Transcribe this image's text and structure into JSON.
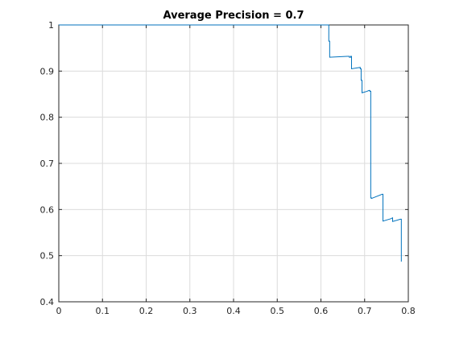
{
  "chart_data": {
    "type": "line",
    "title": "Average Precision = 0.7",
    "xlabel": "",
    "ylabel": "",
    "xlim": [
      0,
      0.8
    ],
    "ylim": [
      0.4,
      1
    ],
    "grid": true,
    "xticks": [
      0,
      0.1,
      0.2,
      0.3,
      0.4,
      0.5,
      0.6,
      0.7,
      0.8
    ],
    "xtick_labels": [
      "0",
      "0.1",
      "0.2",
      "0.3",
      "0.4",
      "0.5",
      "0.6",
      "0.7",
      "0.8"
    ],
    "yticks": [
      0.4,
      0.5,
      0.6,
      0.7,
      0.8,
      0.9,
      1
    ],
    "ytick_labels": [
      "0.4",
      "0.5",
      "0.6",
      "0.7",
      "0.8",
      "0.9",
      "1"
    ],
    "line_color": "#0072BD",
    "series": [
      {
        "x": [
          0,
          0.618,
          0.618,
          0.62,
          0.62,
          0.66,
          0.66,
          0.665,
          0.665,
          0.668,
          0.668,
          0.67,
          0.67,
          0.69,
          0.69,
          0.692,
          0.692,
          0.694,
          0.694,
          0.705,
          0.705,
          0.71,
          0.71,
          0.712,
          0.712,
          0.714,
          0.714,
          0.716,
          0.716,
          0.74,
          0.74,
          0.742,
          0.742,
          0.76,
          0.76,
          0.764,
          0.764,
          0.782,
          0.782,
          0.784,
          0.784
        ],
        "y": [
          1,
          1,
          0.965,
          0.965,
          0.93,
          0.932,
          0.932,
          0.932,
          0.93,
          0.93,
          0.932,
          0.932,
          0.905,
          0.908,
          0.905,
          0.905,
          0.88,
          0.88,
          0.853,
          0.856,
          0.856,
          0.858,
          0.858,
          0.858,
          0.856,
          0.856,
          0.625,
          0.625,
          0.624,
          0.633,
          0.633,
          0.633,
          0.575,
          0.58,
          0.58,
          0.582,
          0.574,
          0.579,
          0.579,
          0.579,
          0.487
        ]
      }
    ]
  }
}
